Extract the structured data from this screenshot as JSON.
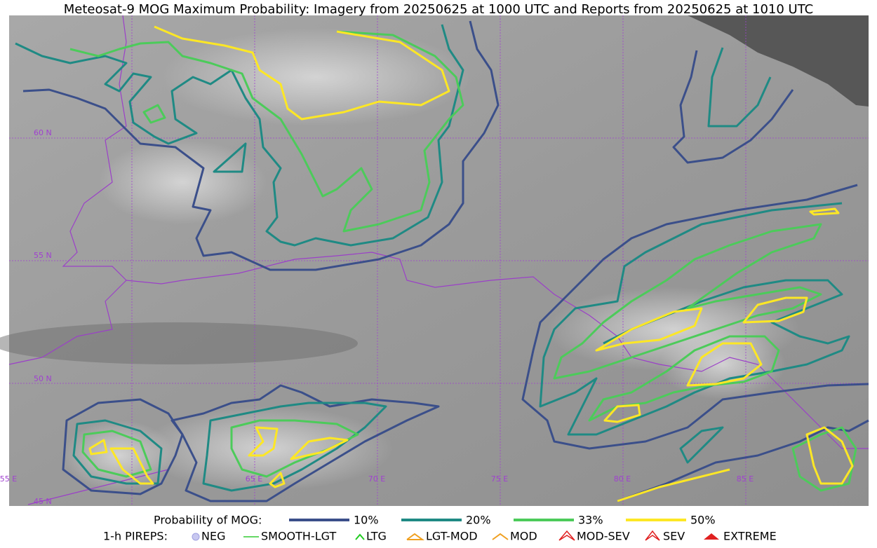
{
  "title": "Meteosat-9 MOG Maximum Probability: Imagery from 20250625 at 1000 UTC and Reports from 20250625 at 1010 UTC",
  "map": {
    "lat_labels": [
      "60 N",
      "55 N",
      "50 N",
      "45 N"
    ],
    "lon_labels": [
      "55 E",
      "65 E",
      "70 E",
      "75 E",
      "80 E",
      "85 E"
    ]
  },
  "legend": {
    "probability": {
      "title": "Probability of MOG:",
      "items": [
        {
          "label": "10%",
          "color": "#3b4f8a"
        },
        {
          "label": "20%",
          "color": "#1f8a84"
        },
        {
          "label": "33%",
          "color": "#4ccb5a"
        },
        {
          "label": "50%",
          "color": "#fde725"
        }
      ]
    },
    "pireps": {
      "title": "1-h PIREPS:",
      "items": [
        "NEG",
        "SMOOTH-LGT",
        "LTG",
        "LGT-MOD",
        "MOD",
        "MOD-SEV",
        "SEV",
        "EXTREME"
      ]
    }
  }
}
